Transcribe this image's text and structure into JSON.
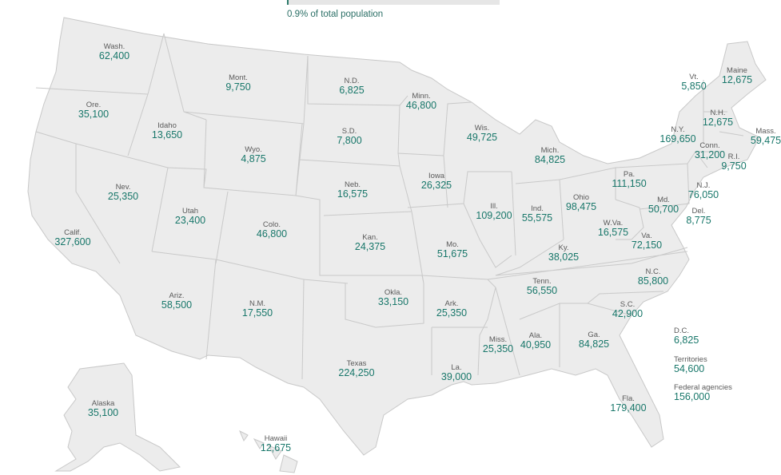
{
  "legend": {
    "text": "0.9% of total population",
    "fraction": 0.009
  },
  "states": [
    {
      "name": "Wash.",
      "value": "62,400"
    },
    {
      "name": "Ore.",
      "value": "35,100"
    },
    {
      "name": "Calif.",
      "value": "327,600"
    },
    {
      "name": "Nev.",
      "value": "25,350"
    },
    {
      "name": "Idaho",
      "value": "13,650"
    },
    {
      "name": "Mont.",
      "value": "9,750"
    },
    {
      "name": "Wyo.",
      "value": "4,875"
    },
    {
      "name": "Utah",
      "value": "23,400"
    },
    {
      "name": "Ariz.",
      "value": "58,500"
    },
    {
      "name": "Colo.",
      "value": "46,800"
    },
    {
      "name": "N.M.",
      "value": "17,550"
    },
    {
      "name": "N.D.",
      "value": "6,825"
    },
    {
      "name": "S.D.",
      "value": "7,800"
    },
    {
      "name": "Neb.",
      "value": "16,575"
    },
    {
      "name": "Kan.",
      "value": "24,375"
    },
    {
      "name": "Okla.",
      "value": "33,150"
    },
    {
      "name": "Texas",
      "value": "224,250"
    },
    {
      "name": "Minn.",
      "value": "46,800"
    },
    {
      "name": "Iowa",
      "value": "26,325"
    },
    {
      "name": "Mo.",
      "value": "51,675"
    },
    {
      "name": "Ark.",
      "value": "25,350"
    },
    {
      "name": "La.",
      "value": "39,000"
    },
    {
      "name": "Wis.",
      "value": "49,725"
    },
    {
      "name": "Ill.",
      "value": "109,200"
    },
    {
      "name": "Mich.",
      "value": "84,825"
    },
    {
      "name": "Ind.",
      "value": "55,575"
    },
    {
      "name": "Ohio",
      "value": "98,475"
    },
    {
      "name": "Ky.",
      "value": "38,025"
    },
    {
      "name": "Tenn.",
      "value": "56,550"
    },
    {
      "name": "Miss.",
      "value": "25,350"
    },
    {
      "name": "Ala.",
      "value": "40,950"
    },
    {
      "name": "Ga.",
      "value": "84,825"
    },
    {
      "name": "Fla.",
      "value": "179,400"
    },
    {
      "name": "S.C.",
      "value": "42,900"
    },
    {
      "name": "N.C.",
      "value": "85,800"
    },
    {
      "name": "Va.",
      "value": "72,150"
    },
    {
      "name": "W.Va.",
      "value": "16,575"
    },
    {
      "name": "Md.",
      "value": "50,700"
    },
    {
      "name": "Del.",
      "value": "8,775"
    },
    {
      "name": "Pa.",
      "value": "111,150"
    },
    {
      "name": "N.J.",
      "value": "76,050"
    },
    {
      "name": "N.Y.",
      "value": "169,650"
    },
    {
      "name": "Conn.",
      "value": "31,200"
    },
    {
      "name": "R.I.",
      "value": "9,750"
    },
    {
      "name": "Mass.",
      "value": "59,475"
    },
    {
      "name": "Vt.",
      "value": "5,850"
    },
    {
      "name": "N.H.",
      "value": "12,675"
    },
    {
      "name": "Maine",
      "value": "12,675"
    },
    {
      "name": "Alaska",
      "value": "35,100"
    },
    {
      "name": "Hawaii",
      "value": "12,675"
    }
  ],
  "other": [
    {
      "name": "D.C.",
      "value": "6,825"
    },
    {
      "name": "Territories",
      "value": "54,600"
    },
    {
      "name": "Federal agencies",
      "value": "156,000"
    }
  ]
}
